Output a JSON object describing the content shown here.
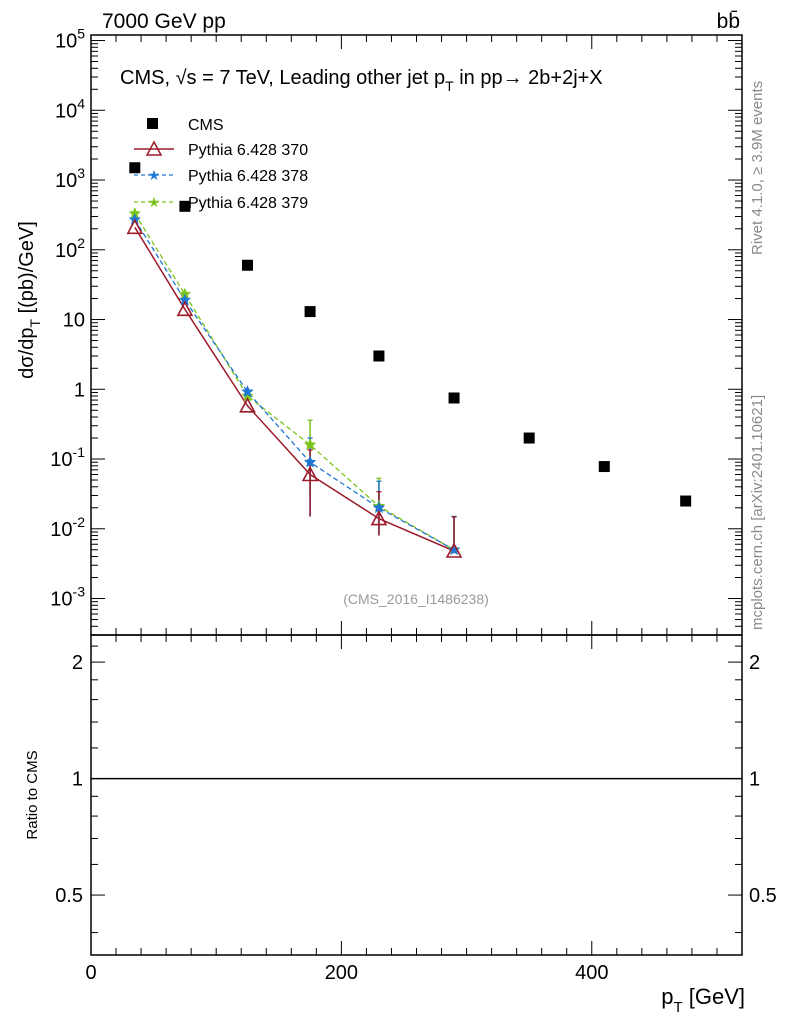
{
  "header": {
    "energy_label": "7000 GeV pp",
    "process_label": "bb̄"
  },
  "side_labels": {
    "rivet": "Rivet 4.1.0, ≥ 3.9M events",
    "mcplots": "mcplots.cern.ch [arXiv:2401.10621]"
  },
  "colors": {
    "cms": "#000000",
    "p370": "#9b1b2a",
    "p378": "#1f77d4",
    "p379": "#7cc31a",
    "watermark": "#9a9a9a"
  },
  "chart_data": [
    {
      "type": "scatter",
      "title_parts": [
        "CMS, ",
        "√s",
        " = 7 TeV, Leading other jet p",
        "T",
        " in pp→  2b+2j+X"
      ],
      "xlabel": "p_T [GeV]",
      "ylabel": "dσ/dp_T [(pb)/GeV]",
      "yscale": "log",
      "xlim": [
        0,
        520
      ],
      "ylim": [
        0.0003,
        120000
      ],
      "y_tick_labels": [
        "10^-3",
        "10^-2",
        "10^-1",
        "1",
        "10",
        "10^2",
        "10^3",
        "10^4",
        "10^5"
      ],
      "watermark": "(CMS_2016_I1486238)",
      "series": [
        {
          "name": "CMS",
          "style": "filled-square",
          "x": [
            35,
            75,
            125,
            175,
            230,
            290,
            350,
            410,
            475
          ],
          "y": [
            1500,
            420,
            60,
            13,
            3.0,
            0.75,
            0.2,
            0.078,
            0.025
          ]
        },
        {
          "name": "Pythia 6.428 370",
          "style": "open-triangle-solid-line",
          "x": [
            35,
            75,
            125,
            175,
            230,
            290
          ],
          "y": [
            210,
            14,
            0.58,
            0.06,
            0.014,
            0.0048
          ],
          "yerr_low": [
            0,
            0,
            0,
            0.045,
            0.006,
            1e-05
          ],
          "yerr_high": [
            0,
            0,
            0,
            0.075,
            0.02,
            0.01
          ]
        },
        {
          "name": "Pythia 6.428 378",
          "style": "star-dashed-line",
          "x": [
            35,
            75,
            125,
            175,
            230,
            290
          ],
          "y": [
            270,
            19,
            0.92,
            0.09,
            0.02,
            0.005
          ],
          "yerr_low": [
            0,
            0,
            0,
            0.075,
            0.012,
            1e-05
          ],
          "yerr_high": [
            0,
            0,
            0,
            0.11,
            0.028,
            0.01
          ]
        },
        {
          "name": "Pythia 6.428 379",
          "style": "star-dashed-line",
          "x": [
            35,
            75,
            125,
            175,
            230,
            290
          ],
          "y": [
            330,
            23,
            0.8,
            0.16,
            0.021,
            0.005
          ],
          "yerr_low": [
            0,
            0,
            0,
            0.13,
            0.012,
            1e-05
          ],
          "yerr_high": [
            0,
            0,
            0,
            0.2,
            0.032,
            0.01
          ]
        }
      ]
    },
    {
      "type": "line",
      "ylabel": "Ratio to CMS",
      "xlabel": "p_T [GeV]",
      "xlim": [
        0,
        520
      ],
      "ylim": [
        0.35,
        2.35
      ],
      "x_tick_labels": [
        "0",
        "200",
        "400"
      ],
      "y_tick_labels": [
        "0.5",
        "1",
        "2"
      ],
      "reference_line": 1
    }
  ]
}
